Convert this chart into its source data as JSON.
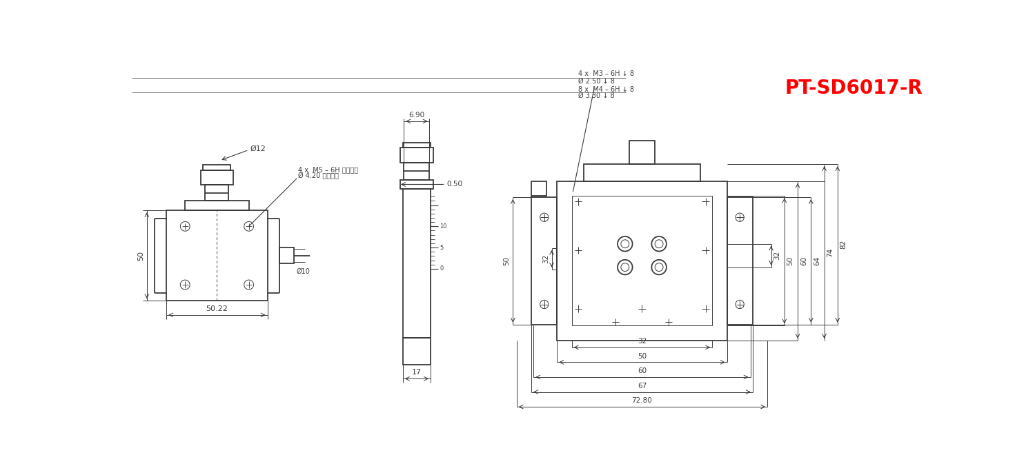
{
  "title": "PT-SD6017-R",
  "title_color": "#FF0000",
  "title_fontsize": 20,
  "bg_color": "#FFFFFF",
  "lc": "#3a3a3a",
  "dc": "#3a3a3a",
  "lw_main": 1.3,
  "lw_thin": 0.7,
  "lw_dim": 0.7,
  "ann": {
    "v1_w": "50.22",
    "v1_h": "50",
    "v1_knob_dia": "Ø12",
    "v1_screw_dia": "Ø10",
    "v1_note1": "4 x  M5 – 6H 完全貫穿",
    "v1_note2": "Ø 4.20 完全貫穿",
    "v2_d1": "6.90",
    "v2_d2": "0.50",
    "v2_d3": "17",
    "v3_n1": "4 x  M3 – 6H ↓ 8",
    "v3_n2": "Ø 2.50 ↓ 8",
    "v3_n3": "8 x  M4 – 6H ↓ 8",
    "v3_n4": "Ø 3.30 ↓ 8",
    "v3_b32": "32",
    "v3_b50": "50",
    "v3_b60": "60",
    "v3_b67": "67",
    "v3_b7280": "72.80",
    "v3_r32": "32",
    "v3_r50": "50",
    "v3_r60": "60",
    "v3_r64": "64",
    "v3_r74": "74",
    "v3_r82": "82",
    "v3_l50": "50",
    "v3_l32": "32"
  }
}
